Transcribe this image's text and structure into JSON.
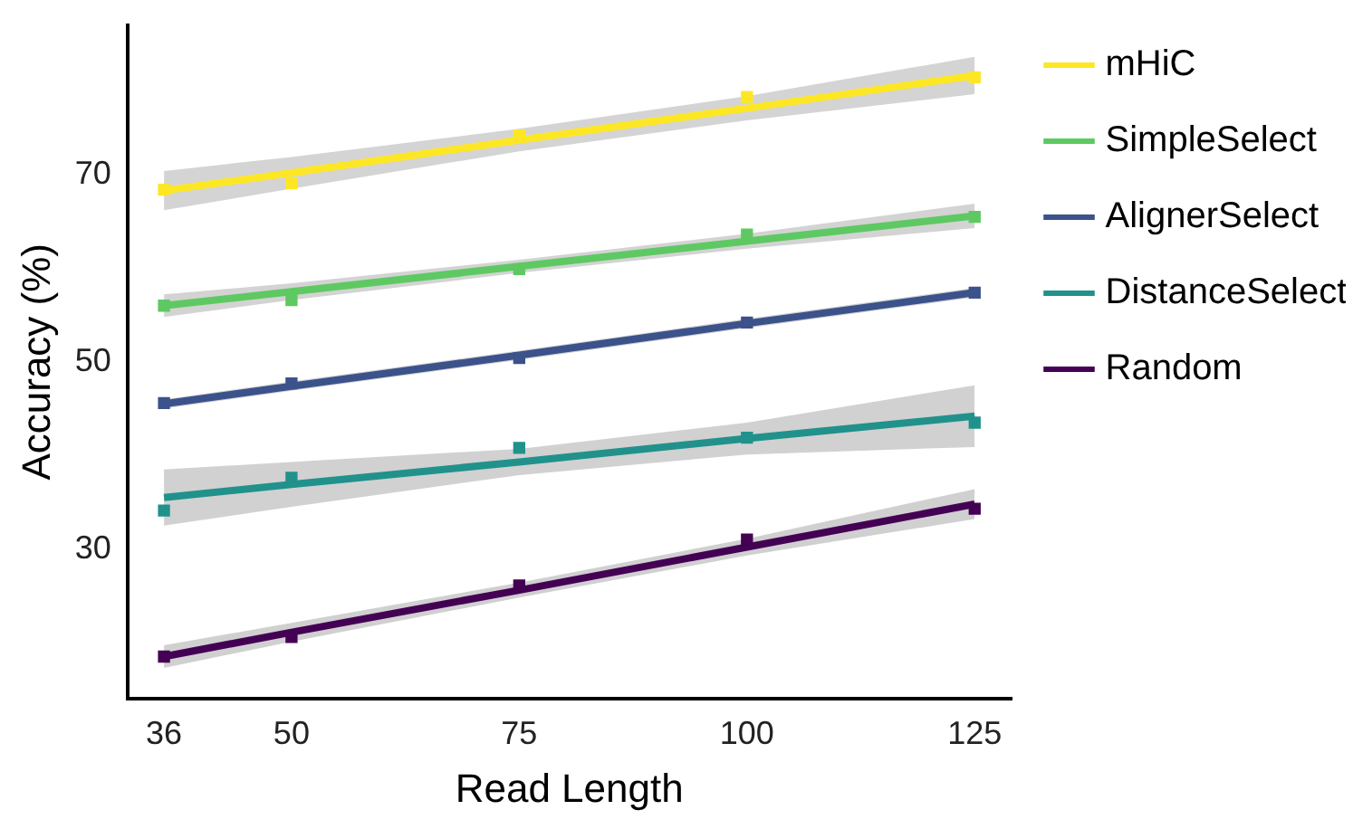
{
  "chart_data": {
    "type": "scatter",
    "xlabel": "Read Length",
    "ylabel": "Accuracy (%)",
    "xlim": [
      32,
      129
    ],
    "ylim": [
      14,
      86
    ],
    "xticks": [
      36,
      50,
      75,
      100,
      125
    ],
    "yticks": [
      30,
      50,
      70
    ],
    "grid": false,
    "legend": "right",
    "marker": "square",
    "series": [
      {
        "name": "mHiC",
        "type": "line",
        "marker": "none",
        "color": "#fde725",
        "x": [
          36,
          50,
          75,
          100,
          125
        ],
        "values": [
          68.3,
          70.2,
          73.7,
          77.1,
          80.6
        ],
        "lower": [
          66.2,
          68.5,
          72.5,
          75.8,
          78.6
        ],
        "upper": [
          70.4,
          71.9,
          74.9,
          78.4,
          82.6
        ]
      },
      {
        "name": "SimpleSelect",
        "type": "line",
        "marker": "none",
        "color": "#5ec962",
        "x": [
          36,
          50,
          75,
          100,
          125
        ],
        "values": [
          56.0,
          57.5,
          60.2,
          62.9,
          65.6
        ],
        "lower": [
          54.8,
          56.6,
          59.5,
          62.1,
          64.3
        ],
        "upper": [
          57.2,
          58.4,
          60.9,
          63.7,
          66.9
        ]
      },
      {
        "name": "AlignerSelect",
        "type": "line",
        "marker": "none",
        "color": "#3b528b",
        "x": [
          36,
          50,
          75,
          100,
          125
        ],
        "values": [
          45.5,
          47.4,
          50.7,
          54.1,
          57.4
        ],
        "lower": [
          45.0,
          46.9,
          50.2,
          53.6,
          56.9
        ],
        "upper": [
          46.0,
          47.9,
          51.2,
          54.6,
          57.9
        ]
      },
      {
        "name": "DistanceSelect",
        "type": "line",
        "marker": "none",
        "color": "#21918c",
        "x": [
          36,
          50,
          75,
          100,
          125
        ],
        "values": [
          35.5,
          36.9,
          39.3,
          41.8,
          44.2
        ],
        "lower": [
          32.5,
          34.5,
          37.9,
          40.1,
          40.9
        ],
        "upper": [
          38.5,
          39.3,
          40.7,
          43.5,
          47.5
        ]
      },
      {
        "name": "Random",
        "type": "line",
        "marker": "none",
        "color": "#440154",
        "x": [
          36,
          50,
          75,
          100,
          125
        ],
        "values": [
          18.5,
          21.1,
          25.6,
          30.2,
          34.8
        ],
        "lower": [
          17.3,
          20.1,
          24.8,
          29.3,
          33.2
        ],
        "upper": [
          19.7,
          22.1,
          26.4,
          31.1,
          36.4
        ]
      },
      {
        "color": "#fde725",
        "x": [
          36,
          50,
          75,
          100,
          125
        ],
        "values": [
          68.4,
          69.1,
          74.2,
          78.3,
          80.4
        ]
      },
      {
        "color": "#5ec962",
        "x": [
          36,
          50,
          75,
          100,
          125
        ],
        "values": [
          56.0,
          56.6,
          59.9,
          63.6,
          65.5
        ]
      },
      {
        "color": "#3b528b",
        "x": [
          36,
          50,
          75,
          100,
          125
        ],
        "values": [
          45.6,
          47.7,
          50.4,
          54.2,
          57.4
        ]
      },
      {
        "color": "#21918c",
        "x": [
          36,
          50,
          75,
          100,
          125
        ],
        "values": [
          34.1,
          37.6,
          40.8,
          41.9,
          43.5
        ]
      },
      {
        "color": "#440154",
        "x": [
          36,
          50,
          75,
          100,
          125
        ],
        "values": [
          18.5,
          20.6,
          26.1,
          31.0,
          34.3
        ]
      }
    ]
  }
}
